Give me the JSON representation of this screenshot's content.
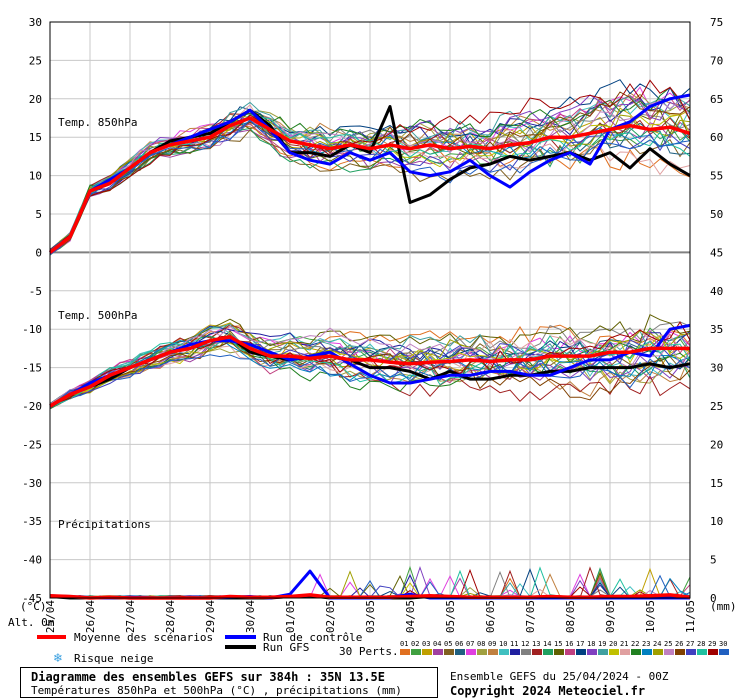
{
  "title": {
    "main": "Diagramme des ensembles GEFS sur 384h : 35N 13.5E",
    "sub": "Températures 850hPa et 500hPa (°C) , précipitations (mm)"
  },
  "info": {
    "run": "Ensemble GEFS du 25/04/2024 - 00Z",
    "copyright": "Copyright 2024 Meteociel.fr"
  },
  "axes": {
    "left_unit": "(°C)",
    "right_unit": "(mm)",
    "alt_label": "Alt. 0m"
  },
  "legend": {
    "mean": "Moyenne des scénarios",
    "control": "Run de contrôle",
    "gfs": "Run GFS",
    "snow": "Risque neige",
    "perts": "30 Perts.",
    "pert_labels": [
      "01",
      "02",
      "03",
      "04",
      "05",
      "06",
      "07",
      "08",
      "09",
      "10",
      "11",
      "12",
      "13",
      "14",
      "15",
      "16",
      "17",
      "18",
      "19",
      "20",
      "21",
      "22",
      "23",
      "24",
      "25",
      "26",
      "27",
      "28",
      "29",
      "30"
    ],
    "pert_colors": [
      "#e07020",
      "#40a040",
      "#c0a000",
      "#a040a0",
      "#806020",
      "#206080",
      "#e040e0",
      "#a0a040",
      "#c08040",
      "#40c0c0",
      "#2020a0",
      "#808080",
      "#a02020",
      "#20a060",
      "#606000",
      "#c04080",
      "#004080",
      "#8040c0",
      "#40a0a0",
      "#c0c000",
      "#e0a0a0",
      "#208020",
      "#0080c0",
      "#a0a000",
      "#c080c0",
      "#804000",
      "#4040c0",
      "#20c0a0",
      "#a00000",
      "#2060c0"
    ],
    "mean_color": "#ff0000",
    "control_color": "#0000ff",
    "gfs_color": "#000000"
  },
  "chart_data": {
    "type": "line",
    "x_dates": [
      "25/04",
      "26/04",
      "27/04",
      "28/04",
      "29/04",
      "30/04",
      "01/05",
      "02/05",
      "03/05",
      "04/05",
      "05/05",
      "06/05",
      "07/05",
      "08/05",
      "09/05",
      "10/05",
      "11/05"
    ],
    "x_hours": [
      0,
      384
    ],
    "left_axis": {
      "ticks": [
        30,
        25,
        20,
        15,
        10,
        5,
        0,
        -5,
        -10,
        -15,
        -20,
        -25,
        -30,
        -35,
        -40,
        -45
      ],
      "ylim": [
        -45,
        30
      ]
    },
    "right_axis": {
      "ticks": [
        75,
        70,
        65,
        60,
        55,
        50,
        45,
        40,
        35,
        30,
        25,
        20,
        15,
        10,
        5,
        0
      ]
    },
    "panels": [
      {
        "label": "Temp. 850hPa",
        "x": [
          0,
          12,
          24,
          36,
          48,
          60,
          72,
          84,
          96,
          108,
          120,
          132,
          144,
          156,
          168,
          180,
          192,
          204,
          216,
          228,
          240,
          252,
          264,
          276,
          288,
          300,
          312,
          324,
          336,
          348,
          360,
          372,
          384
        ],
        "mean": [
          0,
          2,
          8,
          9,
          11,
          13,
          14,
          14.5,
          15,
          16.5,
          17.5,
          16,
          14.5,
          14,
          13.5,
          14,
          13.5,
          14,
          13.5,
          14,
          13.5,
          13.8,
          13.5,
          14,
          14.3,
          15,
          15,
          15.5,
          16,
          16.5,
          16,
          16.3,
          15.5
        ],
        "control": [
          0,
          2,
          8,
          9.5,
          11,
          13,
          14,
          15,
          16,
          17,
          18.5,
          16,
          13,
          12,
          11.5,
          13,
          12,
          13,
          10.5,
          10,
          10.5,
          12,
          10,
          8.5,
          10.5,
          12,
          13,
          11.5,
          16,
          17,
          19,
          20,
          20.5
        ],
        "gfs": [
          0,
          2,
          8,
          9,
          11,
          13,
          14.5,
          15,
          15.5,
          17,
          18.5,
          16.5,
          13,
          13,
          12.5,
          14,
          13,
          19,
          6.5,
          7.5,
          9.5,
          11,
          11.5,
          12.5,
          12,
          12.5,
          13,
          12,
          13,
          11,
          13.5,
          11.5,
          10
        ]
      },
      {
        "label": "Temp. 500hPa",
        "x": [
          0,
          12,
          24,
          36,
          48,
          60,
          72,
          84,
          96,
          108,
          120,
          132,
          144,
          156,
          168,
          180,
          192,
          204,
          216,
          228,
          240,
          252,
          264,
          276,
          288,
          300,
          312,
          324,
          336,
          348,
          360,
          372,
          384
        ],
        "mean": [
          -20,
          -18.5,
          -17.5,
          -16,
          -15,
          -14,
          -13,
          -12.5,
          -11.5,
          -11,
          -12.5,
          -13.5,
          -13.5,
          -13.8,
          -13.5,
          -14,
          -14,
          -14.3,
          -14.5,
          -14.3,
          -14.2,
          -14,
          -14.2,
          -14,
          -14,
          -13.5,
          -13.5,
          -13.5,
          -13,
          -13,
          -12.5,
          -12.5,
          -12.5
        ],
        "control": [
          -20,
          -18.5,
          -17,
          -16,
          -15,
          -14,
          -13,
          -12,
          -11.5,
          -11.5,
          -12,
          -13,
          -14,
          -13.5,
          -13,
          -14.5,
          -16,
          -17,
          -17,
          -16.5,
          -16,
          -16,
          -15.5,
          -15.5,
          -16,
          -16,
          -15,
          -14,
          -14,
          -13,
          -13.5,
          -10,
          -9.5
        ],
        "gfs": [
          -20,
          -18.5,
          -17.5,
          -16.5,
          -15,
          -14,
          -13,
          -12.5,
          -11.5,
          -11,
          -13,
          -13.5,
          -14,
          -13.5,
          -13.5,
          -14,
          -15,
          -15,
          -15.5,
          -16.5,
          -15.5,
          -16.5,
          -16.5,
          -16,
          -16,
          -15.5,
          -15.5,
          -15,
          -15,
          -15,
          -14.5,
          -15,
          -14.5
        ]
      },
      {
        "label": "Précipitations",
        "x": [
          0,
          12,
          24,
          36,
          48,
          60,
          72,
          84,
          96,
          108,
          120,
          132,
          144,
          156,
          168,
          180,
          192,
          204,
          216,
          228,
          240,
          252,
          264,
          276,
          288,
          300,
          312,
          324,
          336,
          348,
          360,
          372,
          384
        ],
        "mean": [
          0.3,
          0.2,
          0,
          0.1,
          0,
          0,
          0,
          0,
          0,
          0.2,
          0.1,
          0.1,
          0.2,
          0.4,
          0.1,
          0.1,
          0.1,
          0.1,
          0.2,
          0.3,
          0.2,
          0.1,
          0.1,
          0.1,
          0.1,
          0.2,
          0.1,
          0.1,
          0.2,
          0.2,
          0.3,
          0.4,
          0.1
        ],
        "control": [
          0.3,
          0.2,
          0,
          0,
          0.1,
          0,
          0,
          0,
          0,
          0.1,
          0.2,
          0,
          0.5,
          3.5,
          0,
          0,
          0,
          0,
          0.5,
          0,
          0,
          0,
          0,
          0,
          0,
          0,
          0,
          0,
          0,
          0,
          0,
          0,
          0
        ],
        "gfs": [
          0.2,
          0,
          0,
          0,
          0,
          0,
          0,
          0,
          0,
          0,
          0,
          0,
          0.2,
          0.3,
          0,
          0,
          0,
          0,
          0,
          0.2,
          0,
          0,
          0,
          0,
          0,
          0,
          0,
          0,
          0,
          0,
          0,
          0.1,
          0
        ]
      }
    ],
    "grid": true
  }
}
